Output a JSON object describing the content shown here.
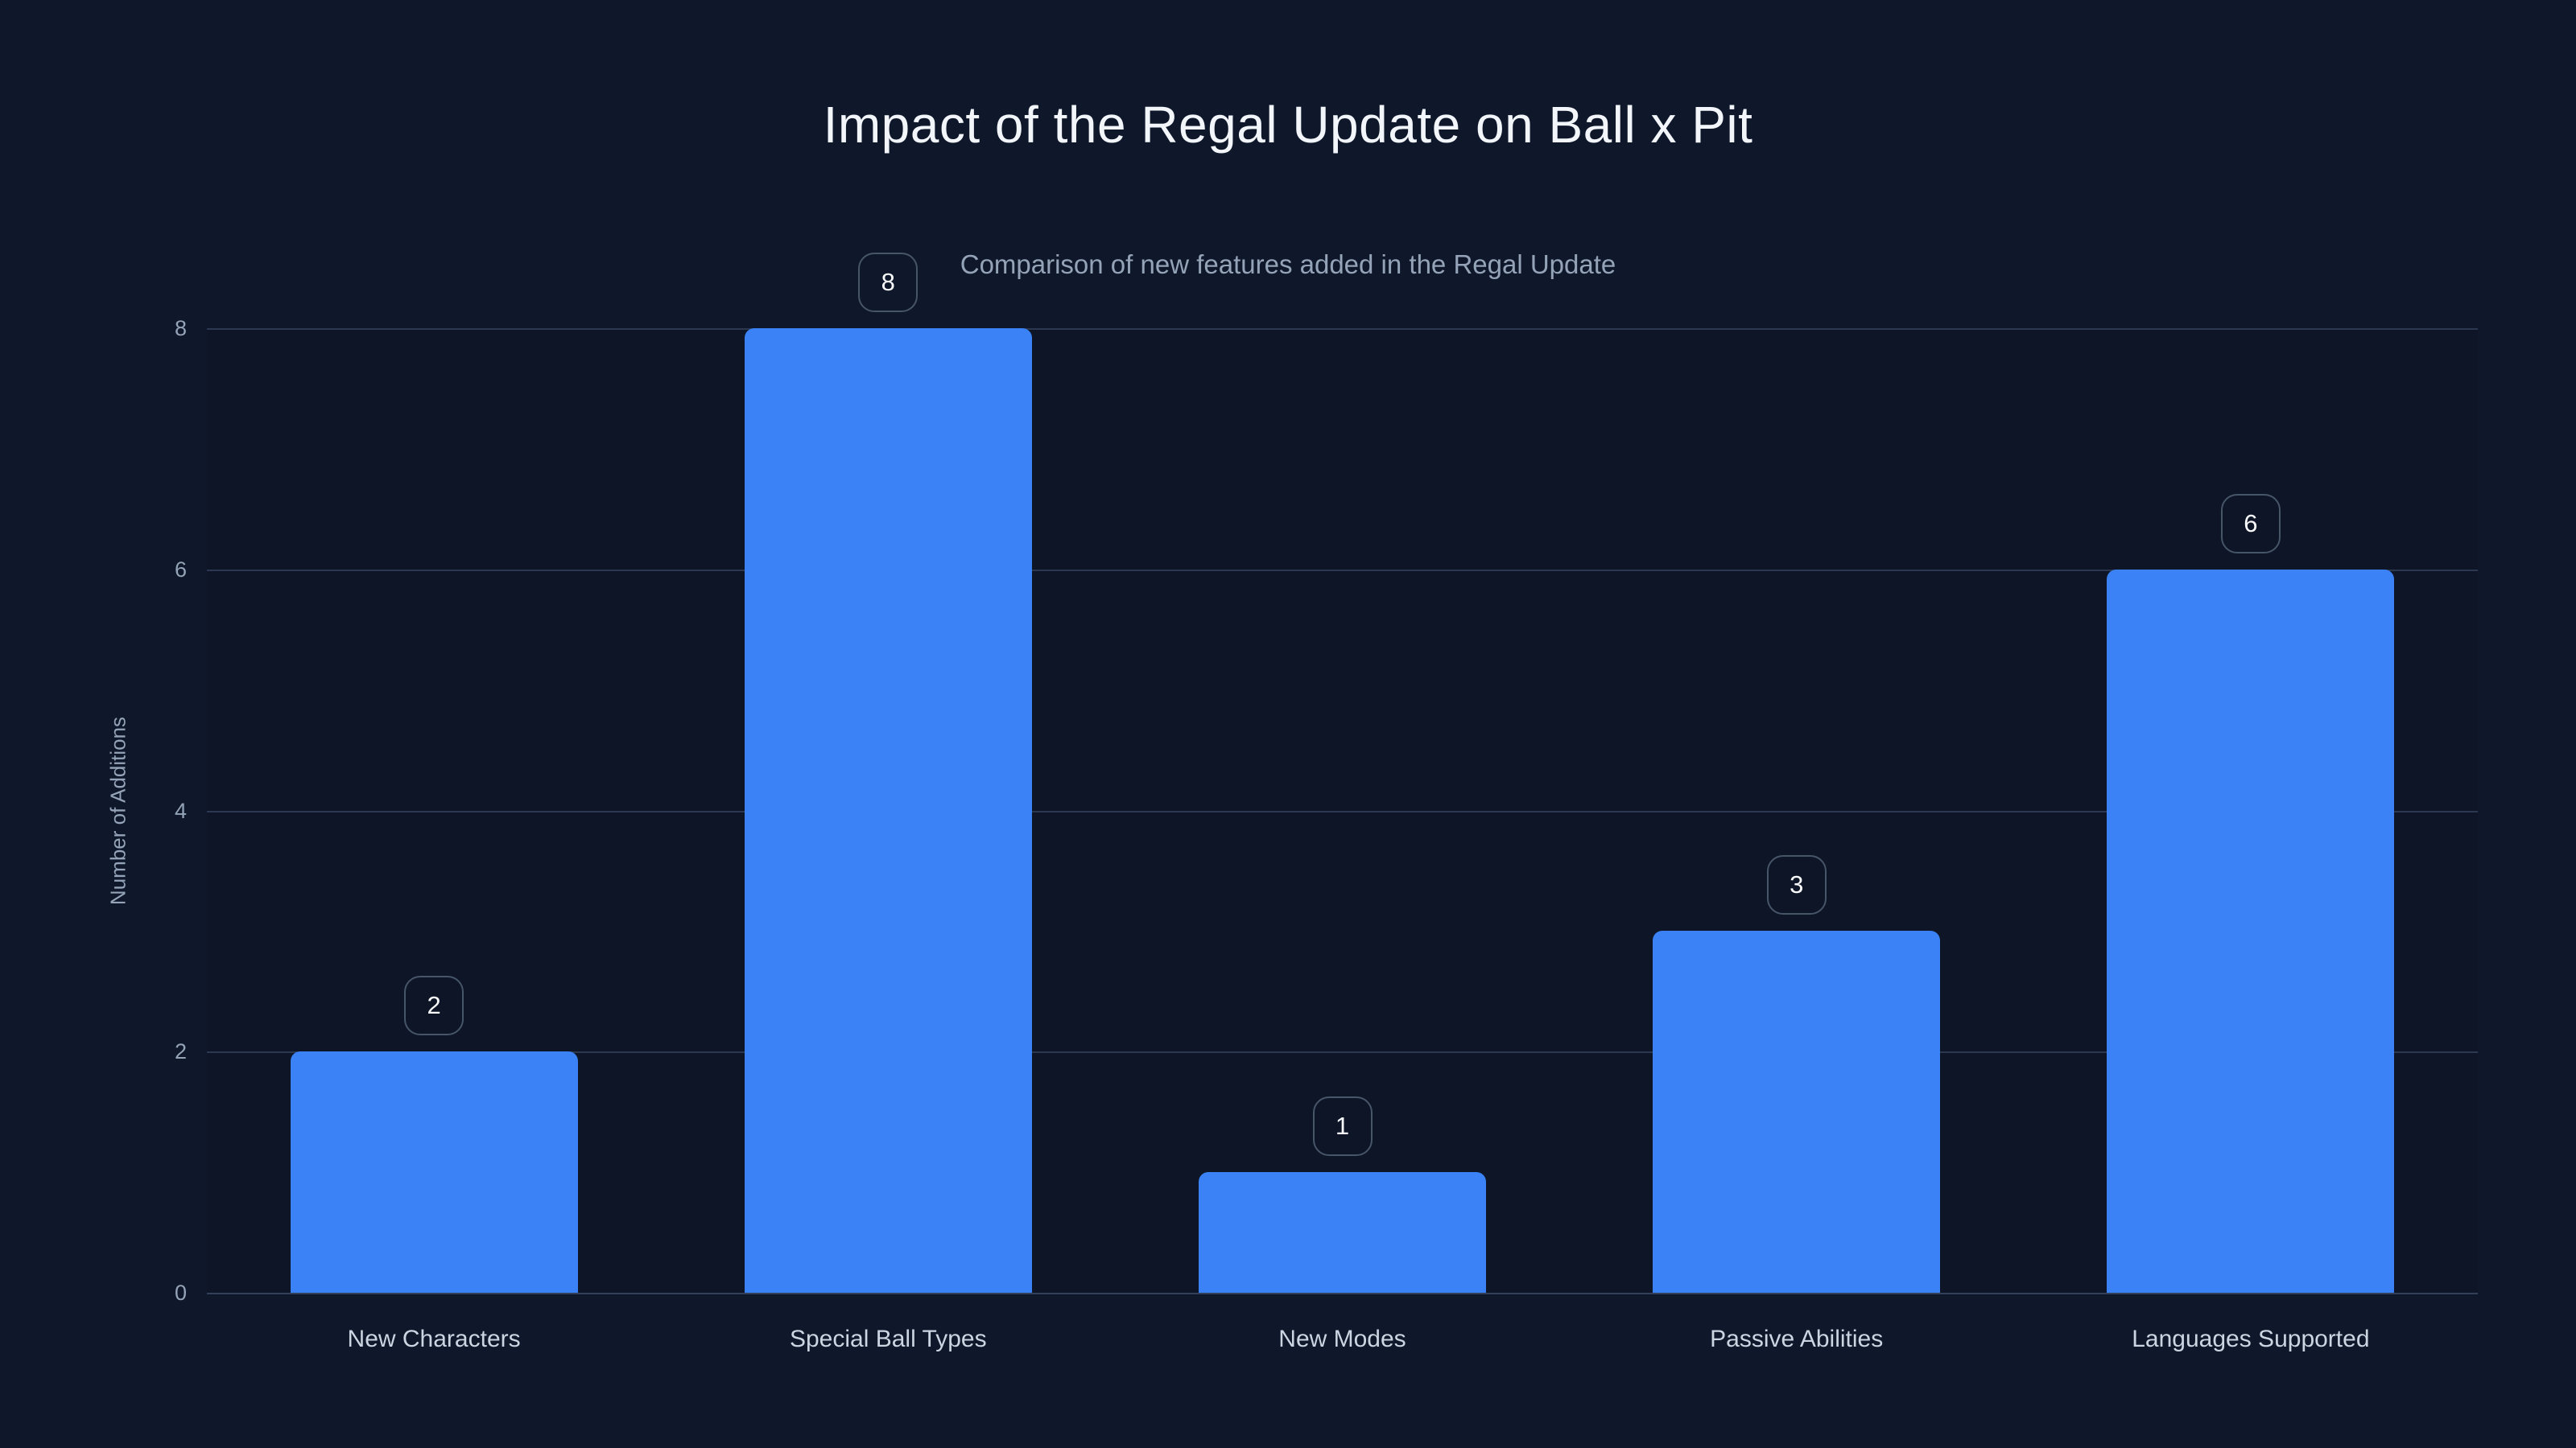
{
  "chart_data": {
    "type": "bar",
    "title": "Impact of the Regal Update on Ball x Pit",
    "subtitle": "Comparison of new features added in the Regal Update",
    "categories": [
      "New Characters",
      "Special Ball Types",
      "New Modes",
      "Passive Abilities",
      "Languages Supported"
    ],
    "values": [
      2,
      8,
      1,
      3,
      6
    ],
    "value_labels": [
      "2",
      "8",
      "1",
      "3",
      "6"
    ],
    "xlabel": "",
    "ylabel": "Number of Additions",
    "yticks": [
      0,
      2,
      4,
      6,
      8
    ],
    "ylim": [
      0,
      8
    ],
    "grid": true,
    "legend": false
  },
  "colors": {
    "background": "#0f172a",
    "bar": "#3b82f6",
    "grid": "#2c3850",
    "grid_strong": "#33405a",
    "title": "#f2f6fa",
    "subtitle": "#94a3b8",
    "tick": "#94a3b8",
    "category": "#cbd5e1",
    "badge_border": "#475569",
    "badge_text": "#f8fafc"
  }
}
